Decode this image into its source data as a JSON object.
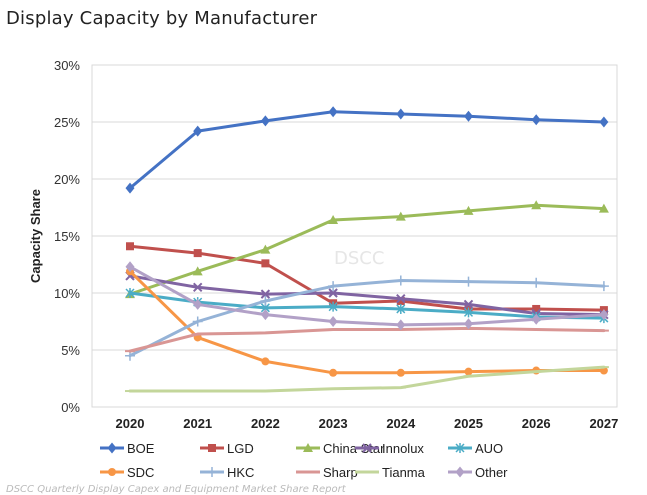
{
  "title": "Display Capacity by Manufacturer",
  "watermark": "DSCC",
  "footer": "DSCC Quarterly Display Capex and Equipment Market Share Report",
  "chart_data": {
    "type": "line",
    "title": "Display Capacity by Manufacturer",
    "xlabel": "",
    "ylabel": "Capacity Share",
    "categories": [
      "2020",
      "2021",
      "2022",
      "2023",
      "2024",
      "2025",
      "2026",
      "2027"
    ],
    "ylim": [
      0,
      30
    ],
    "yticks": [
      0,
      5,
      10,
      15,
      20,
      25,
      30
    ],
    "ytick_labels": [
      "0%",
      "5%",
      "10%",
      "15%",
      "20%",
      "25%",
      "30%"
    ],
    "grid": true,
    "legend_position": "bottom",
    "series": [
      {
        "name": "BOE",
        "color": "#4472C4",
        "marker": "diamond",
        "values": [
          19.2,
          24.2,
          25.1,
          25.9,
          25.7,
          25.5,
          25.2,
          25.0
        ]
      },
      {
        "name": "LGD",
        "color": "#C0504D",
        "marker": "square",
        "values": [
          14.1,
          13.5,
          12.6,
          9.1,
          9.3,
          8.6,
          8.6,
          8.5
        ]
      },
      {
        "name": "China Star",
        "color": "#9BBB59",
        "marker": "triangle",
        "values": [
          9.9,
          11.9,
          13.8,
          16.4,
          16.7,
          17.2,
          17.7,
          17.4
        ]
      },
      {
        "name": "Innolux",
        "color": "#8064A2",
        "marker": "x",
        "values": [
          11.5,
          10.5,
          9.9,
          10.0,
          9.5,
          9.0,
          8.2,
          8.1
        ]
      },
      {
        "name": "AUO",
        "color": "#4BACC6",
        "marker": "asterisk",
        "values": [
          10.0,
          9.2,
          8.7,
          8.8,
          8.6,
          8.3,
          7.9,
          7.8
        ]
      },
      {
        "name": "SDC",
        "color": "#F79646",
        "marker": "circle",
        "values": [
          11.9,
          6.1,
          4.0,
          3.0,
          3.0,
          3.1,
          3.2,
          3.2
        ]
      },
      {
        "name": "HKC",
        "color": "#95B3D7",
        "marker": "plus",
        "values": [
          4.5,
          7.5,
          9.3,
          10.6,
          11.1,
          11.0,
          10.9,
          10.6
        ]
      },
      {
        "name": "Sharp",
        "color": "#D99694",
        "marker": "dash",
        "values": [
          4.9,
          6.4,
          6.5,
          6.8,
          6.8,
          6.9,
          6.8,
          6.7
        ]
      },
      {
        "name": "Tianma",
        "color": "#C3D69B",
        "marker": "dash",
        "values": [
          1.4,
          1.4,
          1.4,
          1.6,
          1.7,
          2.7,
          3.1,
          3.5
        ]
      },
      {
        "name": "Other",
        "color": "#B2A1C7",
        "marker": "diamond",
        "values": [
          12.3,
          9.0,
          8.1,
          7.5,
          7.2,
          7.3,
          7.7,
          8.1
        ]
      }
    ]
  }
}
